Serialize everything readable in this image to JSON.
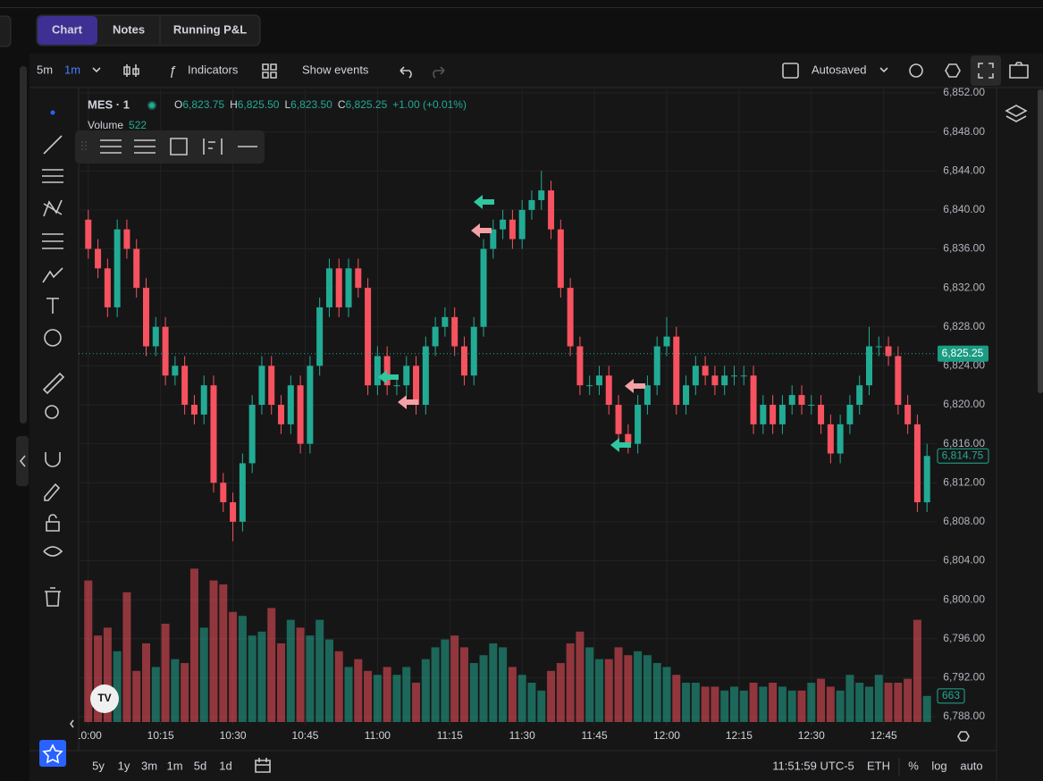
{
  "tabs": [
    "Chart",
    "Notes",
    "Running P&L"
  ],
  "toolbar": {
    "intervals": [
      "5m",
      "1m"
    ],
    "indicators": "Indicators",
    "show_events": "Show events",
    "autosaved": "Autosaved"
  },
  "legend": {
    "symbol": "MES · 1",
    "o": "O",
    "open": "6,823.75",
    "h": "H",
    "high": "6,825.50",
    "l": "L",
    "low": "6,823.50",
    "c": "C",
    "close": "6,825.25",
    "change": "+1.00 (+0.01%)",
    "volume_label": "Volume",
    "volume": "522"
  },
  "ranges": [
    "5y",
    "1y",
    "3m",
    "1m",
    "5d",
    "1d"
  ],
  "status": {
    "time": "11:51:59 UTC-5",
    "session": "ETH",
    "percent": "%",
    "log": "log",
    "auto": "auto"
  },
  "chart_data": {
    "type": "candlestick",
    "up_color": "#22ab94",
    "down_color": "#f7525f",
    "x": [
      "10:00",
      "10:02",
      "10:04",
      "10:06",
      "10:08",
      "10:10",
      "10:12",
      "10:14",
      "10:16",
      "10:18",
      "10:20",
      "10:22",
      "10:24",
      "10:26",
      "10:28",
      "10:30",
      "10:32",
      "10:34",
      "10:36",
      "10:38",
      "10:40",
      "10:42",
      "10:44",
      "10:46",
      "10:48",
      "10:50",
      "10:52",
      "10:54",
      "10:56",
      "10:58",
      "11:00",
      "11:02",
      "11:04",
      "11:06",
      "11:08",
      "11:10",
      "11:12",
      "11:14",
      "11:16",
      "11:18",
      "11:20",
      "11:22",
      "11:24",
      "11:26",
      "11:28",
      "11:30",
      "11:32",
      "11:34",
      "11:36",
      "11:38",
      "11:40",
      "11:42",
      "11:44",
      "11:46",
      "11:48",
      "11:50",
      "11:52",
      "11:54",
      "11:56",
      "11:58",
      "12:00",
      "12:02",
      "12:04",
      "12:06",
      "12:08",
      "12:10",
      "12:12",
      "12:14",
      "12:16",
      "12:18",
      "12:20",
      "12:22",
      "12:24",
      "12:26",
      "12:28",
      "12:30",
      "12:32",
      "12:34",
      "12:36",
      "12:38",
      "12:40",
      "12:42",
      "12:44",
      "12:46",
      "12:48",
      "12:50",
      "12:52",
      "12:54"
    ],
    "open": [
      6839,
      6836,
      6834,
      6830,
      6838,
      6836,
      6832,
      6826,
      6828,
      6823,
      6824,
      6820,
      6819,
      6822,
      6812,
      6810,
      6808,
      6814,
      6820,
      6824,
      6820,
      6818,
      6822,
      6816,
      6824,
      6830,
      6834,
      6830,
      6834,
      6832,
      6822,
      6825,
      6822,
      6822,
      6824,
      6820,
      6826,
      6828,
      6829,
      6826,
      6823,
      6828,
      6836,
      6838,
      6839,
      6837,
      6840,
      6841,
      6842,
      6838,
      6832,
      6826,
      6822,
      6822,
      6823,
      6820,
      6817,
      6816,
      6820,
      6822,
      6826,
      6827,
      6820,
      6822,
      6824,
      6823,
      6822,
      6823,
      6823,
      6823,
      6818,
      6820,
      6818,
      6820,
      6821,
      6820,
      6820,
      6818,
      6815,
      6818,
      6820,
      6822,
      6826,
      6826,
      6825,
      6820,
      6818,
      6810
    ],
    "high": [
      6840,
      6837,
      6835,
      6839,
      6839,
      6837,
      6833,
      6829,
      6829,
      6825,
      6825,
      6821,
      6823,
      6823,
      6813,
      6811,
      6815,
      6821,
      6825,
      6825,
      6821,
      6823,
      6823,
      6825,
      6831,
      6835,
      6835,
      6835,
      6835,
      6833,
      6826,
      6826,
      6823,
      6825,
      6825,
      6827,
      6829,
      6830,
      6830,
      6827,
      6829,
      6837,
      6839,
      6840,
      6840,
      6841,
      6842,
      6844,
      6843,
      6839,
      6833,
      6827,
      6823,
      6824,
      6824,
      6821,
      6818,
      6821,
      6823,
      6827,
      6829,
      6828,
      6823,
      6825,
      6825,
      6824,
      6824,
      6824,
      6824,
      6824,
      6821,
      6821,
      6821,
      6822,
      6822,
      6821,
      6821,
      6819,
      6819,
      6821,
      6823,
      6828,
      6827,
      6827,
      6826,
      6821,
      6819,
      6816
    ],
    "low": [
      6835,
      6833,
      6829,
      6829,
      6835,
      6831,
      6825,
      6825,
      6822,
      6822,
      6819,
      6818,
      6818,
      6811,
      6809,
      6806,
      6807,
      6813,
      6819,
      6819,
      6817,
      6817,
      6815,
      6815,
      6823,
      6829,
      6829,
      6829,
      6831,
      6821,
      6821,
      6821,
      6821,
      6821,
      6819,
      6819,
      6825,
      6827,
      6825,
      6822,
      6822,
      6827,
      6835,
      6837,
      6836,
      6836,
      6839,
      6840,
      6837,
      6831,
      6825,
      6821,
      6821,
      6821,
      6819,
      6816,
      6815,
      6815,
      6819,
      6821,
      6825,
      6819,
      6819,
      6821,
      6822,
      6821,
      6821,
      6822,
      6822,
      6817,
      6817,
      6817,
      6817,
      6819,
      6819,
      6819,
      6817,
      6814,
      6814,
      6817,
      6819,
      6821,
      6825,
      6824,
      6819,
      6817,
      6809,
      6809
    ],
    "close": [
      6836,
      6834,
      6830,
      6838,
      6836,
      6832,
      6826,
      6828,
      6823,
      6824,
      6820,
      6819,
      6822,
      6812,
      6810,
      6808,
      6814,
      6820,
      6824,
      6820,
      6818,
      6822,
      6816,
      6824,
      6830,
      6834,
      6830,
      6834,
      6832,
      6822,
      6825,
      6822,
      6822,
      6824,
      6820,
      6826,
      6828,
      6829,
      6826,
      6823,
      6828,
      6836,
      6838,
      6839,
      6837,
      6840,
      6841,
      6842,
      6838,
      6832,
      6826,
      6822,
      6822,
      6823,
      6820,
      6817,
      6816,
      6820,
      6822,
      6826,
      6827,
      6820,
      6822,
      6824,
      6823,
      6822,
      6823,
      6823,
      6823,
      6818,
      6820,
      6818,
      6820,
      6821,
      6820,
      6820,
      6818,
      6815,
      6818,
      6820,
      6822,
      6826,
      6826,
      6825,
      6820,
      6818,
      6810,
      6814.75
    ],
    "volume": [
      3600,
      2200,
      2400,
      1800,
      3300,
      1300,
      2000,
      1400,
      2500,
      1600,
      1500,
      3900,
      2400,
      3600,
      3500,
      2800,
      2700,
      2200,
      2300,
      2900,
      2000,
      2600,
      2400,
      2200,
      2600,
      2100,
      1800,
      1400,
      1600,
      1300,
      1200,
      1400,
      1200,
      1400,
      1000,
      1600,
      1900,
      2100,
      2200,
      1900,
      1500,
      1700,
      2000,
      1900,
      1400,
      1200,
      1000,
      800,
      1300,
      1500,
      2000,
      2300,
      1900,
      1600,
      1600,
      1900,
      1700,
      1800,
      1700,
      1500,
      1400,
      1200,
      1000,
      1000,
      900,
      900,
      800,
      900,
      800,
      1000,
      900,
      1000,
      900,
      800,
      800,
      1000,
      1100,
      900,
      800,
      1200,
      1000,
      900,
      1200,
      1000,
      1000,
      1100,
      2600,
      663
    ],
    "xlim": [
      "09:58",
      "12:56"
    ],
    "ylim": [
      6788,
      6852
    ],
    "vlim": [
      0,
      4000
    ],
    "yticks": [
      {
        "value": 6852,
        "label": "6,852.00"
      },
      {
        "value": 6848,
        "label": "6,848.00"
      },
      {
        "value": 6844,
        "label": "6,844.00"
      },
      {
        "value": 6840,
        "label": "6,840.00"
      },
      {
        "value": 6836,
        "label": "6,836.00"
      },
      {
        "value": 6832,
        "label": "6,832.00"
      },
      {
        "value": 6828,
        "label": "6,828.00"
      },
      {
        "value": 6824,
        "label": "6,824.00"
      },
      {
        "value": 6820,
        "label": "6,820.00"
      },
      {
        "value": 6816,
        "label": "6,816.00"
      },
      {
        "value": 6812,
        "label": "6,812.00"
      },
      {
        "value": 6808,
        "label": "6,808.00"
      },
      {
        "value": 6804,
        "label": "6,804.00"
      },
      {
        "value": 6800,
        "label": "6,800.00"
      },
      {
        "value": 6796,
        "label": "6,796.00"
      },
      {
        "value": 6792,
        "label": "6,792.00"
      },
      {
        "value": 6788,
        "label": "6,788.00"
      }
    ],
    "xticks": [
      "10:00",
      "10:15",
      "10:30",
      "10:45",
      "11:00",
      "11:15",
      "11:30",
      "11:45",
      "12:00",
      "12:15",
      "12:30",
      "12:45"
    ],
    "price_labels": [
      {
        "value": 6825.25,
        "label": "6,825.25"
      },
      {
        "value": 6814.75,
        "label": "6,814.75"
      }
    ]
  }
}
